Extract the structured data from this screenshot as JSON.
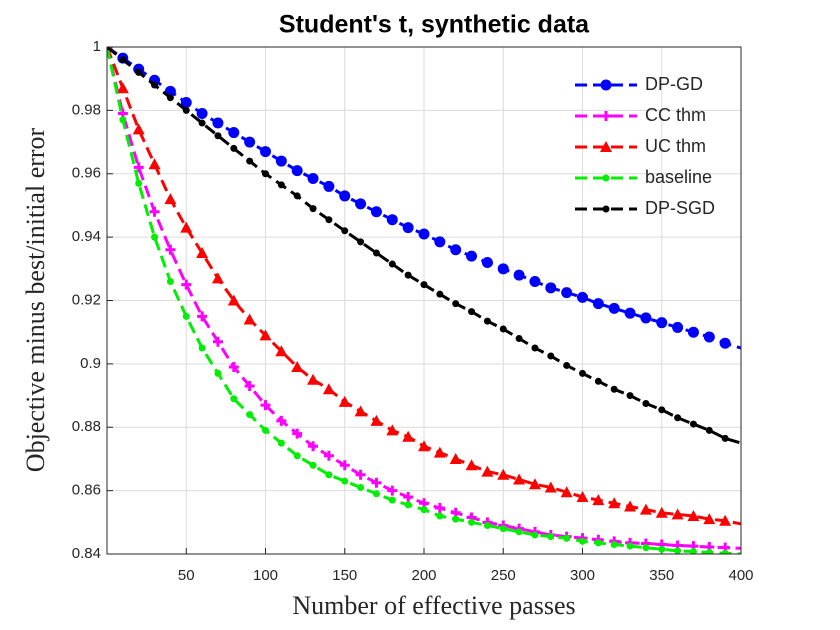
{
  "chart_data": {
    "type": "line",
    "title": "Student's t, synthetic data",
    "x_label": "Number of effective passes",
    "y_label": "Objective minus best/initial error",
    "x": [
      0,
      10,
      20,
      30,
      40,
      50,
      60,
      70,
      80,
      90,
      100,
      110,
      120,
      130,
      140,
      150,
      160,
      170,
      180,
      190,
      200,
      210,
      220,
      230,
      240,
      250,
      260,
      270,
      280,
      290,
      300,
      310,
      320,
      330,
      340,
      350,
      360,
      370,
      380,
      390,
      400
    ],
    "xlim": [
      0,
      400
    ],
    "ylim": [
      0.84,
      1
    ],
    "xticks": [
      50,
      100,
      150,
      200,
      250,
      300,
      350,
      400
    ],
    "yticks": [
      0.84,
      0.86,
      0.88,
      0.9,
      0.92,
      0.94,
      0.96,
      0.98,
      1
    ],
    "grid": true,
    "legend": "upper right",
    "line_style": "dashed",
    "series": [
      {
        "name": "DP-GD",
        "color": "#0000ff",
        "marker": "circle",
        "values": [
          1.0,
          0.9965,
          0.993,
          0.9895,
          0.986,
          0.9825,
          0.979,
          0.976,
          0.973,
          0.97,
          0.967,
          0.964,
          0.961,
          0.9585,
          0.956,
          0.953,
          0.9505,
          0.948,
          0.9455,
          0.943,
          0.941,
          0.9385,
          0.936,
          0.934,
          0.932,
          0.93,
          0.928,
          0.926,
          0.924,
          0.9225,
          0.921,
          0.919,
          0.9175,
          0.916,
          0.9145,
          0.913,
          0.9115,
          0.91,
          0.9085,
          0.9065,
          0.905
        ]
      },
      {
        "name": "CC thm",
        "color": "#ff00ff",
        "marker": "plus",
        "values": [
          1.0,
          0.979,
          0.962,
          0.948,
          0.936,
          0.925,
          0.915,
          0.907,
          0.899,
          0.893,
          0.887,
          0.882,
          0.878,
          0.874,
          0.871,
          0.868,
          0.865,
          0.8625,
          0.86,
          0.858,
          0.856,
          0.8545,
          0.853,
          0.8515,
          0.85,
          0.849,
          0.848,
          0.847,
          0.846,
          0.8455,
          0.845,
          0.8445,
          0.844,
          0.8435,
          0.8433,
          0.843,
          0.8427,
          0.8425,
          0.8422,
          0.842,
          0.8418
        ]
      },
      {
        "name": "UC thm",
        "color": "#ff0000",
        "marker": "triangle",
        "values": [
          1.0,
          0.987,
          0.974,
          0.963,
          0.952,
          0.943,
          0.935,
          0.927,
          0.92,
          0.914,
          0.909,
          0.904,
          0.899,
          0.895,
          0.892,
          0.888,
          0.885,
          0.882,
          0.879,
          0.877,
          0.874,
          0.872,
          0.87,
          0.868,
          0.866,
          0.865,
          0.8635,
          0.862,
          0.861,
          0.8595,
          0.858,
          0.857,
          0.856,
          0.855,
          0.854,
          0.853,
          0.8525,
          0.852,
          0.851,
          0.8505,
          0.8495
        ]
      },
      {
        "name": "baseline",
        "color": "#00ee00",
        "marker": "dot",
        "values": [
          1.0,
          0.977,
          0.957,
          0.94,
          0.926,
          0.915,
          0.905,
          0.897,
          0.889,
          0.884,
          0.879,
          0.875,
          0.871,
          0.868,
          0.865,
          0.863,
          0.861,
          0.859,
          0.857,
          0.8555,
          0.854,
          0.852,
          0.851,
          0.85,
          0.849,
          0.848,
          0.847,
          0.846,
          0.8455,
          0.845,
          0.844,
          0.8435,
          0.843,
          0.8425,
          0.842,
          0.8415,
          0.841,
          0.8408,
          0.8405,
          0.8402,
          0.84
        ]
      },
      {
        "name": "DP-SGD",
        "color": "#000000",
        "marker": "dot",
        "values": [
          1.0,
          0.996,
          0.992,
          0.988,
          0.984,
          0.98,
          0.976,
          0.972,
          0.968,
          0.964,
          0.96,
          0.9565,
          0.953,
          0.949,
          0.9455,
          0.942,
          0.9385,
          0.935,
          0.9315,
          0.928,
          0.925,
          0.922,
          0.919,
          0.9165,
          0.9135,
          0.911,
          0.908,
          0.905,
          0.9025,
          0.8995,
          0.897,
          0.8945,
          0.892,
          0.89,
          0.8875,
          0.8855,
          0.883,
          0.881,
          0.879,
          0.8765,
          0.875
        ]
      }
    ]
  }
}
